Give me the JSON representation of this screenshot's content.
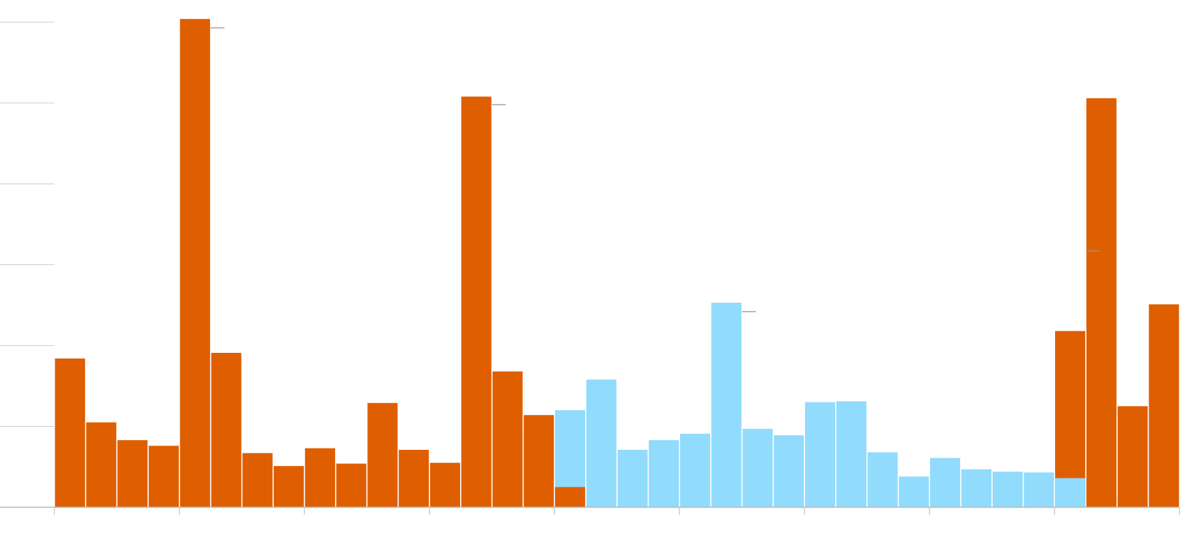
{
  "chart_data": {
    "type": "bar",
    "categories": [
      null,
      null,
      null,
      null,
      null,
      null,
      null,
      null,
      null,
      null,
      null,
      null,
      null,
      null,
      null,
      null,
      null,
      null,
      null,
      null,
      null,
      null,
      null,
      null,
      null,
      null,
      null,
      null,
      null,
      null,
      null,
      null,
      null,
      null,
      null,
      null
    ],
    "series": [
      {
        "color": "#df5e00",
        "values": [
          1.84,
          1.05,
          0.83,
          0.76,
          6.04,
          1.91,
          0.67,
          0.51,
          0.73,
          0.54,
          1.29,
          0.71,
          0.55,
          5.08,
          1.68,
          1.14,
          0.25,
          null,
          null,
          null,
          null,
          null,
          null,
          null,
          null,
          null,
          null,
          null,
          null,
          null,
          null,
          null,
          2.18,
          5.06,
          1.25,
          2.51
        ]
      },
      {
        "color": "#91dbfc",
        "values": [
          null,
          null,
          null,
          null,
          null,
          null,
          null,
          null,
          null,
          null,
          null,
          null,
          null,
          null,
          null,
          null,
          1.2,
          1.58,
          0.71,
          0.83,
          0.91,
          2.53,
          0.97,
          0.89,
          1.3,
          1.31,
          0.68,
          0.38,
          0.61,
          0.47,
          0.44,
          0.43,
          0.36,
          null,
          null,
          null
        ]
      }
    ],
    "markers": {
      "color": "#999999",
      "values": [
        null,
        null,
        null,
        null,
        5.93,
        null,
        null,
        null,
        null,
        null,
        null,
        null,
        null,
        4.98,
        null,
        null,
        null,
        null,
        null,
        null,
        null,
        2.42,
        null,
        null,
        null,
        null,
        null,
        null,
        null,
        null,
        null,
        null,
        3.17,
        null,
        null,
        null
      ]
    },
    "ylim": [
      0,
      6
    ],
    "yticks": [
      0,
      1,
      2,
      3,
      4,
      5,
      6
    ],
    "grid": true
  }
}
